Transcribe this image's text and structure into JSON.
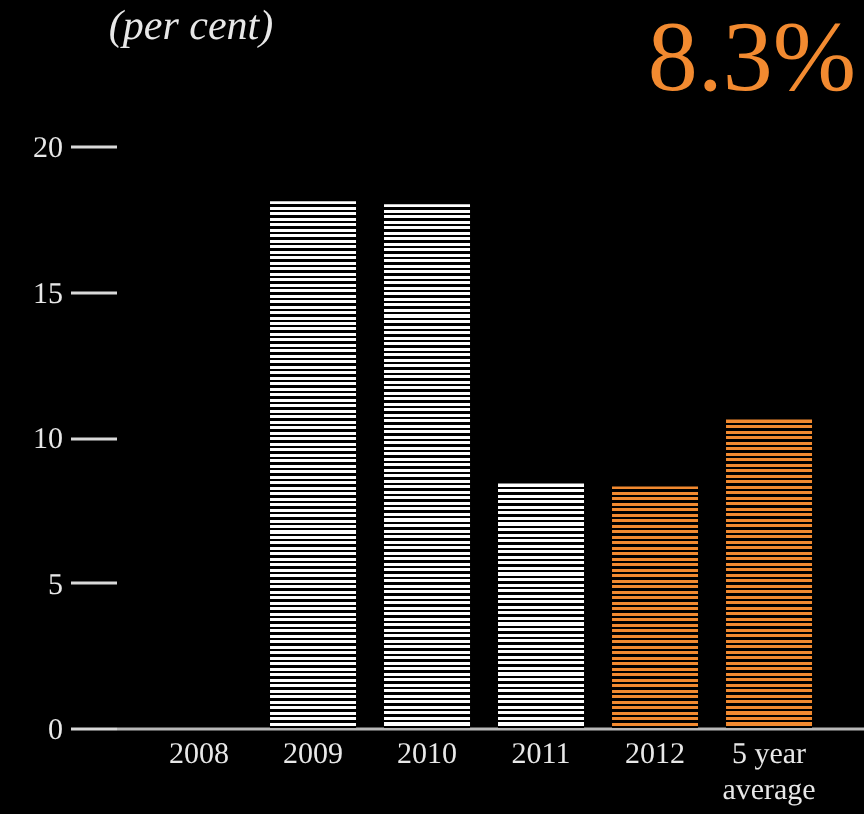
{
  "chart_data": {
    "type": "bar",
    "ylabel": "(per cent)",
    "annotations": [
      "8.3%"
    ],
    "categories": [
      "2008",
      "2009",
      "2010",
      "2011",
      "2012",
      "5 year\naverage"
    ],
    "values": [
      0,
      18.1,
      18.0,
      8.4,
      8.3,
      10.6
    ],
    "colors": [
      "#ffffff",
      "#ffffff",
      "#ffffff",
      "#ffffff",
      "#f28a30",
      "#f28a30"
    ],
    "ylim": [
      0,
      20
    ],
    "yticks": [
      0,
      5,
      10,
      15,
      20
    ],
    "grid": false
  }
}
